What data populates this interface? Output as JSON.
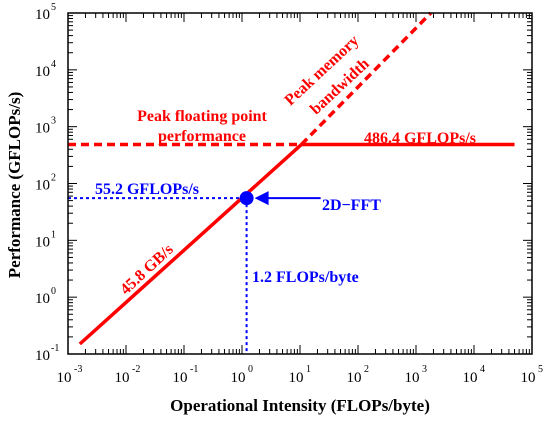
{
  "chart_data": {
    "type": "line",
    "title": "",
    "xlabel": "Operational Intensity (FLOPs/byte)",
    "ylabel": "Performance (GFLOPs/s)",
    "x_scale": "log",
    "y_scale": "log",
    "xlim": [
      0.001,
      100000
    ],
    "ylim": [
      0.1,
      100000
    ],
    "grid": false,
    "x_ticks": [
      {
        "base": "10",
        "exp": "-3",
        "value": 0.001
      },
      {
        "base": "10",
        "exp": "-2",
        "value": 0.01
      },
      {
        "base": "10",
        "exp": "-1",
        "value": 0.1
      },
      {
        "base": "10",
        "exp": "0",
        "value": 1
      },
      {
        "base": "10",
        "exp": "1",
        "value": 10
      },
      {
        "base": "10",
        "exp": "2",
        "value": 100
      },
      {
        "base": "10",
        "exp": "3",
        "value": 1000
      },
      {
        "base": "10",
        "exp": "4",
        "value": 10000
      },
      {
        "base": "10",
        "exp": "5",
        "value": 100000
      }
    ],
    "y_ticks": [
      {
        "base": "10",
        "exp": "-1",
        "value": 0.1
      },
      {
        "base": "10",
        "exp": "0",
        "value": 1
      },
      {
        "base": "10",
        "exp": "1",
        "value": 10
      },
      {
        "base": "10",
        "exp": "2",
        "value": 100
      },
      {
        "base": "10",
        "exp": "3",
        "value": 1000
      },
      {
        "base": "10",
        "exp": "4",
        "value": 10000
      },
      {
        "base": "10",
        "exp": "5",
        "value": 100000
      }
    ],
    "series": [
      {
        "style": "solid",
        "color": "#ff0000",
        "points": [
          [
            0.0016,
            0.15
          ],
          [
            10.6,
            486.4
          ]
        ]
      },
      {
        "style": "solid",
        "color": "#ff0000",
        "points": [
          [
            10.6,
            486.4
          ],
          [
            50000,
            486.4
          ]
        ]
      },
      {
        "style": "dashed",
        "color": "#ff0000",
        "points": [
          [
            0.001,
            486.4
          ],
          [
            10.6,
            486.4
          ]
        ]
      },
      {
        "style": "dashed",
        "color": "#ff0000",
        "points": [
          [
            10.6,
            486.4
          ],
          [
            1800,
            100000
          ]
        ]
      }
    ],
    "guides": [
      {
        "style": "dotted",
        "color": "#0000ff",
        "points": [
          [
            0.001,
            55.2
          ],
          [
            1.2,
            55.2
          ]
        ]
      },
      {
        "style": "dotted",
        "color": "#0000ff",
        "points": [
          [
            1.2,
            55.2
          ],
          [
            1.2,
            0.1
          ]
        ]
      }
    ],
    "marker": {
      "x": 1.2,
      "y": 55.2,
      "color": "#0000ff"
    },
    "arrow": {
      "from": [
        30,
        55.2
      ],
      "to": [
        1.2,
        55.2
      ],
      "color": "#0000ff"
    },
    "annotations": {
      "peak_fp_1": "Peak floating point",
      "peak_fp_2": "performance",
      "peak_mem_1": "Peak memory",
      "peak_mem_2": "bandwidth",
      "peak_value": "486.4 GFLOPs/s",
      "bw_value": "45.8 GB/s",
      "kernel_perf": "55.2 GFLOPs/s",
      "kernel_name": "2D−FFT",
      "kernel_oi": "1.2 FLOPs/byte"
    },
    "colors": {
      "roof": "#ff0000",
      "kernel": "#0000ff"
    }
  }
}
